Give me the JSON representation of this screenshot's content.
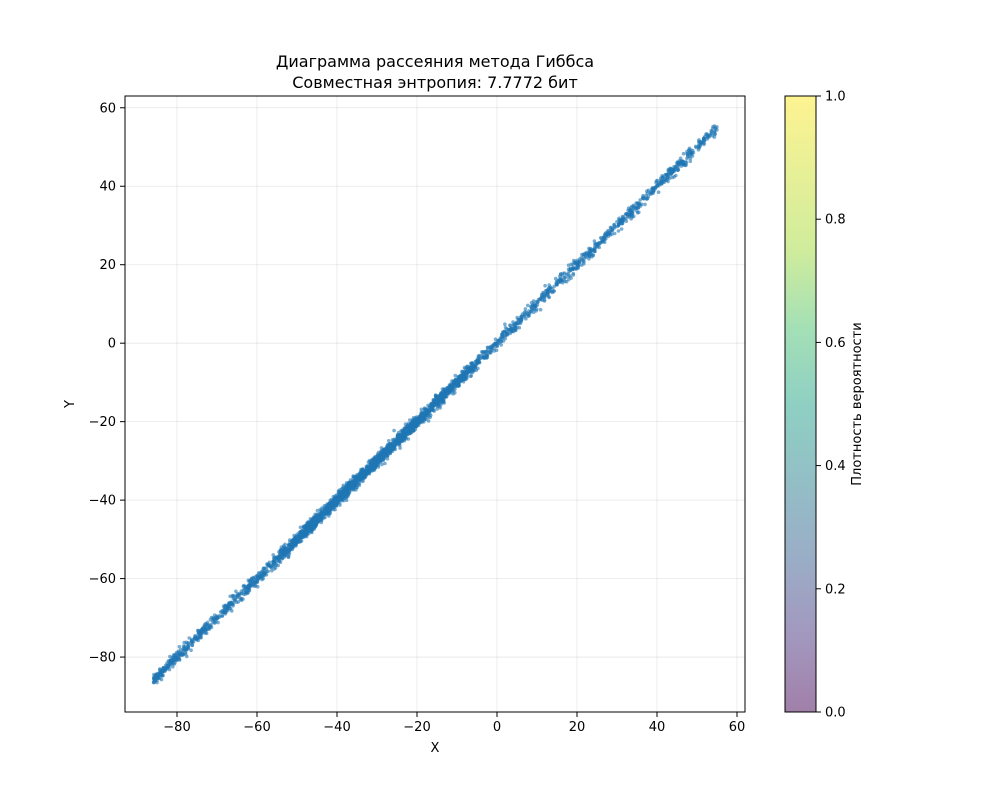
{
  "chart_data": {
    "type": "scatter",
    "title_line1": "Диаграмма рассеяния метода Гиббса",
    "title_line2": "Совместная энтропия: 7.7772 бит",
    "xlabel": "X",
    "ylabel": "Y",
    "xlim": [
      -93,
      62
    ],
    "ylim": [
      -94,
      63
    ],
    "xticks": [
      -80,
      -60,
      -40,
      -20,
      0,
      20,
      40,
      60
    ],
    "yticks": [
      -80,
      -60,
      -40,
      -20,
      0,
      20,
      40,
      60
    ],
    "grid": true,
    "marker_color": "#1f77b4",
    "marker_alpha": 0.6,
    "series": [
      {
        "relation": "y ≈ x",
        "x_range": [
          -86,
          55
        ],
        "approx_points": 10000,
        "dense_region": [
          -50,
          -10
        ]
      }
    ],
    "colorbar": {
      "label": "Плотность вероятности",
      "range": [
        0.0,
        1.0
      ],
      "ticks": [
        "0.0",
        "0.2",
        "0.4",
        "0.6",
        "0.8",
        "1.0"
      ],
      "colormap": "viridis",
      "alpha": 0.5
    }
  }
}
